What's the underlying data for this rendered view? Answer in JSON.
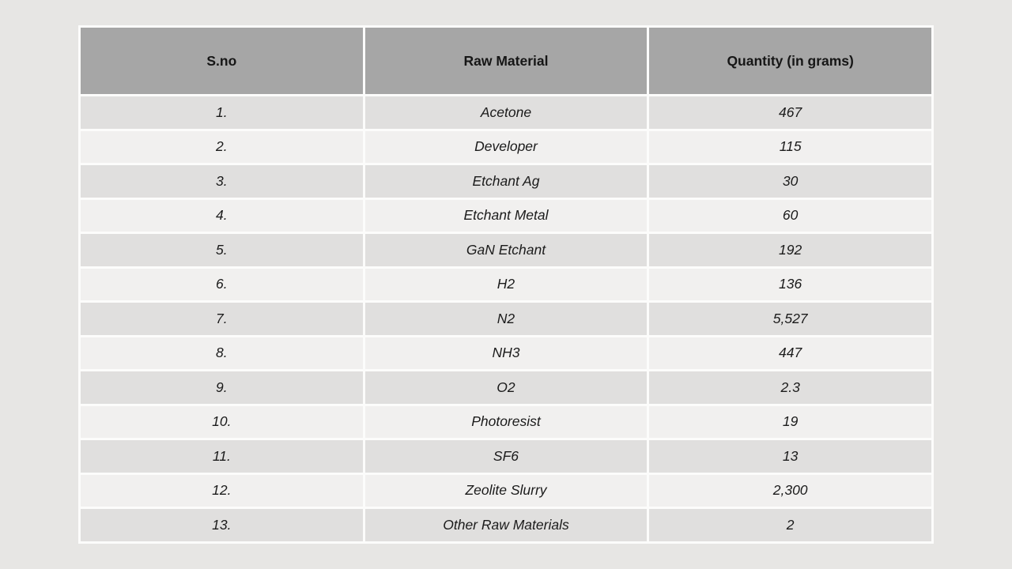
{
  "page": {
    "background_color": "#e7e6e4"
  },
  "table": {
    "columns": [
      "S.no",
      "Raw Material",
      "Quantity (in grams)"
    ],
    "rows": [
      {
        "sno": "1.",
        "material": "Acetone",
        "quantity": "467"
      },
      {
        "sno": "2.",
        "material": "Developer",
        "quantity": "115"
      },
      {
        "sno": "3.",
        "material": "Etchant Ag",
        "quantity": "30"
      },
      {
        "sno": "4.",
        "material": "Etchant Metal",
        "quantity": "60"
      },
      {
        "sno": "5.",
        "material": "GaN Etchant",
        "quantity": "192"
      },
      {
        "sno": "6.",
        "material": "H2",
        "quantity": "136"
      },
      {
        "sno": "7.",
        "material": "N2",
        "quantity": "5,527"
      },
      {
        "sno": "8.",
        "material": "NH3",
        "quantity": "447"
      },
      {
        "sno": "9.",
        "material": "O2",
        "quantity": "2.3"
      },
      {
        "sno": "10.",
        "material": "Photoresist",
        "quantity": "19"
      },
      {
        "sno": "11.",
        "material": "SF6",
        "quantity": "13"
      },
      {
        "sno": "12.",
        "material": "Zeolite Slurry",
        "quantity": "2,300"
      },
      {
        "sno": "13.",
        "material": "Other Raw Materials",
        "quantity": "2"
      }
    ],
    "colors": {
      "header_bg": "#a6a6a6",
      "row_odd_bg": "#e0dfde",
      "row_even_bg": "#f1f0ef",
      "divider": "#fcfcfb",
      "text": "#1b1b1b"
    }
  },
  "chart_data": {
    "type": "table",
    "title": "",
    "columns": [
      "S.no",
      "Raw Material",
      "Quantity (in grams)"
    ],
    "rows": [
      [
        "1.",
        "Acetone",
        "467"
      ],
      [
        "2.",
        "Developer",
        "115"
      ],
      [
        "3.",
        "Etchant Ag",
        "30"
      ],
      [
        "4.",
        "Etchant Metal",
        "60"
      ],
      [
        "5.",
        "GaN Etchant",
        "192"
      ],
      [
        "6.",
        "H2",
        "136"
      ],
      [
        "7.",
        "N2",
        "5,527"
      ],
      [
        "8.",
        "NH3",
        "447"
      ],
      [
        "9.",
        "O2",
        "2.3"
      ],
      [
        "10.",
        "Photoresist",
        "19"
      ],
      [
        "11.",
        "SF6",
        "13"
      ],
      [
        "12.",
        "Zeolite Slurry",
        "2,300"
      ],
      [
        "13.",
        "Other Raw Materials",
        "2"
      ]
    ]
  }
}
